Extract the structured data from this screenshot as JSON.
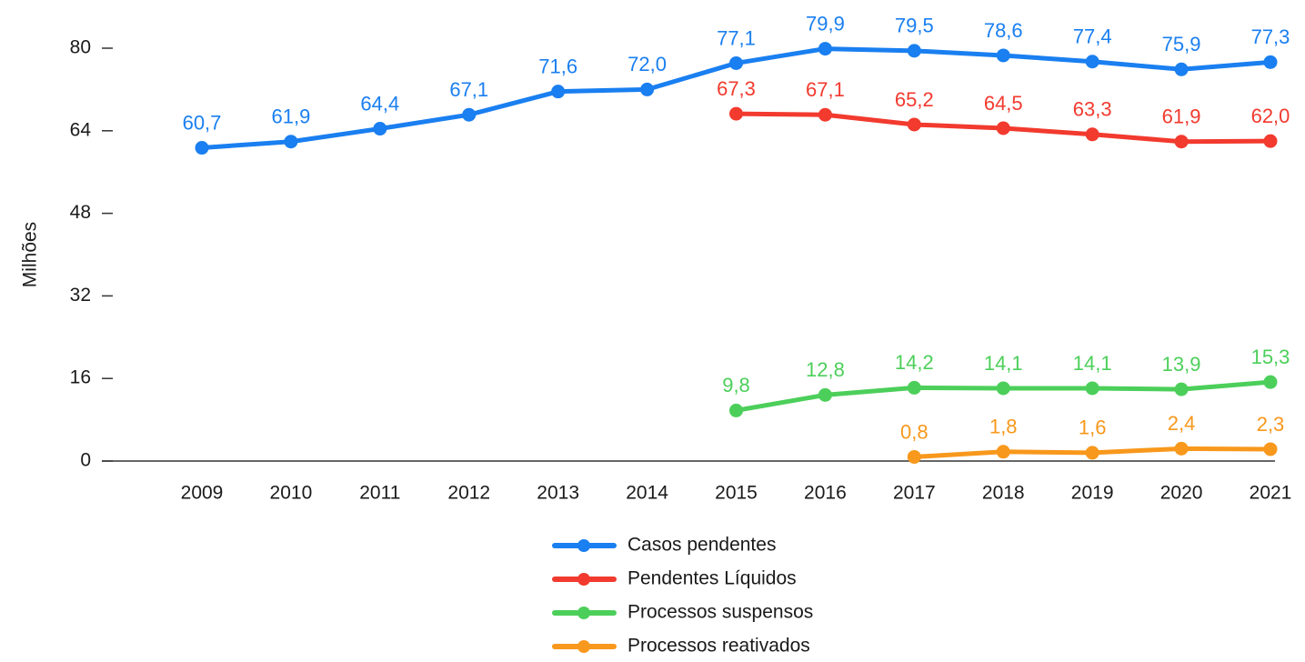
{
  "chart_data": {
    "type": "line",
    "y_label": "Milhões",
    "categories": [
      "2009",
      "2010",
      "2011",
      "2012",
      "2013",
      "2014",
      "2015",
      "2016",
      "2017",
      "2018",
      "2019",
      "2020",
      "2021"
    ],
    "series": [
      {
        "name": "Casos pendentes",
        "color": "#1a7ff0",
        "values": [
          60.7,
          61.9,
          64.4,
          67.1,
          71.6,
          72.0,
          77.1,
          79.9,
          79.5,
          78.6,
          77.4,
          75.9,
          77.3
        ],
        "value_labels": [
          "60,7",
          "61,9",
          "64,4",
          "67,1",
          "71,6",
          "72,0",
          "77,1",
          "79,9",
          "79,5",
          "78,6",
          "77,4",
          "75,9",
          "77,3"
        ]
      },
      {
        "name": "Pendentes Líquidos",
        "color": "#f23a2e",
        "values": [
          null,
          null,
          null,
          null,
          null,
          null,
          67.3,
          67.1,
          65.2,
          64.5,
          63.3,
          61.9,
          62.0
        ],
        "value_labels": [
          null,
          null,
          null,
          null,
          null,
          null,
          "67,3",
          "67,1",
          "65,2",
          "64,5",
          "63,3",
          "61,9",
          "62,0"
        ]
      },
      {
        "name": "Processos suspensos",
        "color": "#4ccf5a",
        "values": [
          null,
          null,
          null,
          null,
          null,
          null,
          9.8,
          12.8,
          14.2,
          14.1,
          14.1,
          13.9,
          15.3
        ],
        "value_labels": [
          null,
          null,
          null,
          null,
          null,
          null,
          "9,8",
          "12,8",
          "14,2",
          "14,1",
          "14,1",
          "13,9",
          "15,3"
        ]
      },
      {
        "name": "Processos reativados",
        "color": "#f8981c",
        "values": [
          null,
          null,
          null,
          null,
          null,
          null,
          null,
          null,
          0.8,
          1.8,
          1.6,
          2.4,
          2.3
        ],
        "value_labels": [
          null,
          null,
          null,
          null,
          null,
          null,
          null,
          null,
          "0,8",
          "1,8",
          "1,6",
          "2,4",
          "2,3"
        ]
      }
    ],
    "ylim": [
      0,
      80
    ],
    "yticks": [
      0,
      16,
      32,
      48,
      64,
      80
    ]
  }
}
